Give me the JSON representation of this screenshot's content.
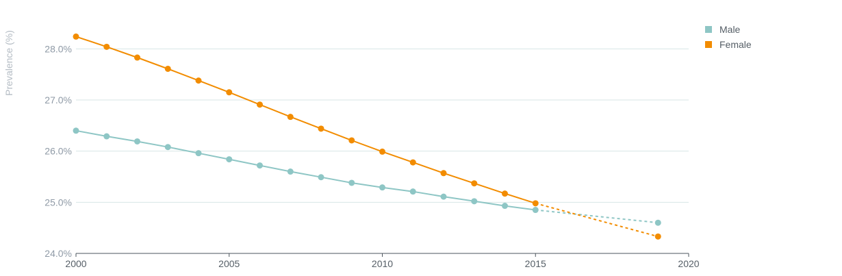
{
  "chart_data": {
    "type": "line",
    "ylabel": "Prevalence (%)",
    "xlabel": "",
    "xlim": [
      2000,
      2020
    ],
    "ylim": [
      24.0,
      28.5
    ],
    "x_ticks": [
      2000,
      2005,
      2010,
      2015,
      2020
    ],
    "y_ticks": [
      24.0,
      25.0,
      26.0,
      27.0,
      28.0
    ],
    "y_tick_labels": [
      "24.0%",
      "25.0%",
      "26.0%",
      "27.0%",
      "28.0%"
    ],
    "grid": "horizontal",
    "legend_position": "top-right",
    "series": [
      {
        "name": "Male",
        "color": "#8ec6c5",
        "points": [
          {
            "x": 2000,
            "y": 26.4
          },
          {
            "x": 2001,
            "y": 26.29
          },
          {
            "x": 2002,
            "y": 26.19
          },
          {
            "x": 2003,
            "y": 26.08
          },
          {
            "x": 2004,
            "y": 25.96
          },
          {
            "x": 2005,
            "y": 25.84
          },
          {
            "x": 2006,
            "y": 25.72
          },
          {
            "x": 2007,
            "y": 25.6
          },
          {
            "x": 2008,
            "y": 25.49
          },
          {
            "x": 2009,
            "y": 25.38
          },
          {
            "x": 2010,
            "y": 25.29
          },
          {
            "x": 2011,
            "y": 25.21
          },
          {
            "x": 2012,
            "y": 25.11
          },
          {
            "x": 2013,
            "y": 25.02
          },
          {
            "x": 2014,
            "y": 24.93
          },
          {
            "x": 2015,
            "y": 24.85
          }
        ],
        "projection": [
          {
            "x": 2015,
            "y": 24.85
          },
          {
            "x": 2019,
            "y": 24.6
          }
        ]
      },
      {
        "name": "Female",
        "color": "#f28c00",
        "points": [
          {
            "x": 2000,
            "y": 28.24
          },
          {
            "x": 2001,
            "y": 28.04
          },
          {
            "x": 2002,
            "y": 27.83
          },
          {
            "x": 2003,
            "y": 27.61
          },
          {
            "x": 2004,
            "y": 27.38
          },
          {
            "x": 2005,
            "y": 27.15
          },
          {
            "x": 2006,
            "y": 26.91
          },
          {
            "x": 2007,
            "y": 26.67
          },
          {
            "x": 2008,
            "y": 26.44
          },
          {
            "x": 2009,
            "y": 26.21
          },
          {
            "x": 2010,
            "y": 25.99
          },
          {
            "x": 2011,
            "y": 25.78
          },
          {
            "x": 2012,
            "y": 25.57
          },
          {
            "x": 2013,
            "y": 25.37
          },
          {
            "x": 2014,
            "y": 25.17
          },
          {
            "x": 2015,
            "y": 24.98
          }
        ],
        "projection": [
          {
            "x": 2015,
            "y": 24.98
          },
          {
            "x": 2019,
            "y": 24.33
          }
        ]
      }
    ]
  }
}
